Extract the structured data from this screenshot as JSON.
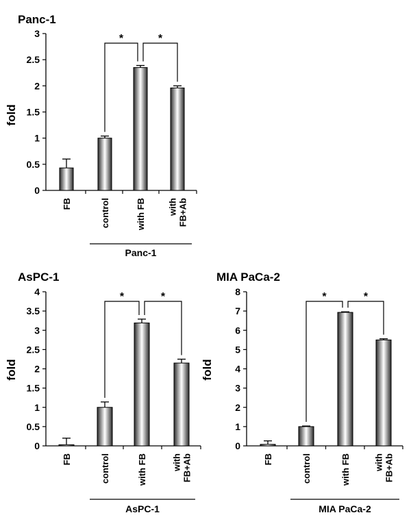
{
  "chart_data": [
    {
      "type": "bar",
      "title": "Panc-1",
      "ylabel": "fold",
      "ylim": [
        0,
        3
      ],
      "ytick_step": 0.5,
      "yticks": [
        "0",
        "0.5",
        "1",
        "1.5",
        "2",
        "2.5",
        "3"
      ],
      "categories": [
        "FB",
        "control",
        "with FB",
        "with FB+Ab"
      ],
      "category_lines": [
        [
          "FB"
        ],
        [
          "control"
        ],
        [
          "with FB"
        ],
        [
          "with",
          "FB+Ab"
        ]
      ],
      "values": [
        0.43,
        1.0,
        2.35,
        1.96
      ],
      "errors": [
        0.17,
        0.04,
        0.04,
        0.04
      ],
      "group_label": "Panc-1",
      "group_range": [
        1,
        3
      ],
      "significance": [
        {
          "from": 1,
          "to": 2,
          "label": "*"
        },
        {
          "from": 2,
          "to": 3,
          "label": "*"
        }
      ]
    },
    {
      "type": "bar",
      "title": "AsPC-1",
      "ylabel": "fold",
      "ylim": [
        0,
        4
      ],
      "ytick_step": 0.5,
      "yticks": [
        "0",
        "0.5",
        "1",
        "1.5",
        "2",
        "2.5",
        "3",
        "3.5",
        "4"
      ],
      "categories": [
        "FB",
        "control",
        "with FB",
        "with FB+Ab"
      ],
      "category_lines": [
        [
          "FB"
        ],
        [
          "control"
        ],
        [
          "with FB"
        ],
        [
          "with",
          "FB+Ab"
        ]
      ],
      "values": [
        0.03,
        1.0,
        3.19,
        2.15
      ],
      "errors": [
        0.17,
        0.14,
        0.1,
        0.1
      ],
      "group_label": "AsPC-1",
      "group_range": [
        1,
        3
      ],
      "significance": [
        {
          "from": 1,
          "to": 2,
          "label": "*"
        },
        {
          "from": 2,
          "to": 3,
          "label": "*"
        }
      ]
    },
    {
      "type": "bar",
      "title": "MIA PaCa-2",
      "ylabel": "fold",
      "ylim": [
        0,
        8
      ],
      "ytick_step": 1,
      "yticks": [
        "0",
        "1",
        "2",
        "3",
        "4",
        "5",
        "6",
        "7",
        "8"
      ],
      "categories": [
        "FB",
        "control",
        "with FB",
        "with FB+Ab"
      ],
      "category_lines": [
        [
          "FB"
        ],
        [
          "control"
        ],
        [
          "with FB"
        ],
        [
          "with",
          "FB+Ab"
        ]
      ],
      "values": [
        0.08,
        1.0,
        6.93,
        5.5
      ],
      "errors": [
        0.18,
        0.03,
        0.03,
        0.06
      ],
      "group_label": "MIA PaCa-2",
      "group_range": [
        1,
        3
      ],
      "significance": [
        {
          "from": 1,
          "to": 2,
          "label": "*"
        },
        {
          "from": 2,
          "to": 3,
          "label": "*"
        }
      ]
    }
  ]
}
